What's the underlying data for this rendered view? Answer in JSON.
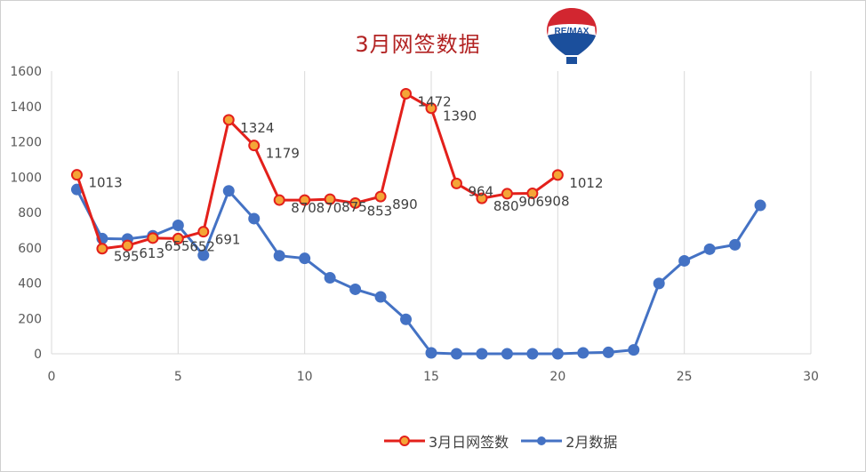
{
  "chart_data": {
    "type": "line",
    "title": "3月网签数据",
    "xlim": [
      0,
      30
    ],
    "ylim": [
      0,
      1600
    ],
    "xticks": [
      0,
      5,
      10,
      15,
      20,
      25,
      30
    ],
    "yticks": [
      0,
      200,
      400,
      600,
      800,
      1000,
      1200,
      1400,
      1600
    ],
    "grid": "vertical",
    "legend_position": "bottom",
    "series": [
      {
        "name": "3月日网签数",
        "color": "#e3201b",
        "marker_fill": "#f4a537",
        "x": [
          1,
          2,
          3,
          4,
          5,
          6,
          7,
          8,
          9,
          10,
          11,
          12,
          13,
          14,
          15,
          16,
          17,
          18,
          19,
          20
        ],
        "y": [
          1013,
          595,
          613,
          655,
          652,
          691,
          1324,
          1179,
          870,
          870,
          875,
          853,
          890,
          1472,
          1390,
          964,
          880,
          906,
          908,
          1012
        ],
        "labels": [
          "1013",
          "595",
          "613",
          "655",
          "652",
          "691",
          "1324",
          "1179",
          "870",
          "870",
          "875",
          "853",
          "890",
          "1472",
          "1390",
          "964",
          "880",
          "906",
          "908",
          "1012"
        ]
      },
      {
        "name": "2月数据",
        "color": "#4472c4",
        "marker_fill": "#4472c4",
        "x": [
          1,
          2,
          3,
          4,
          5,
          6,
          7,
          8,
          9,
          10,
          11,
          12,
          13,
          14,
          15,
          16,
          17,
          18,
          19,
          20,
          21,
          22,
          23,
          24,
          25,
          26,
          27,
          28
        ],
        "y": [
          930,
          652,
          650,
          668,
          727,
          558,
          922,
          765,
          555,
          540,
          430,
          365,
          322,
          195,
          5,
          0,
          0,
          0,
          0,
          0,
          5,
          8,
          22,
          398,
          526,
          592,
          617,
          840
        ]
      }
    ]
  },
  "logo": {
    "text": "RE/MAX"
  }
}
